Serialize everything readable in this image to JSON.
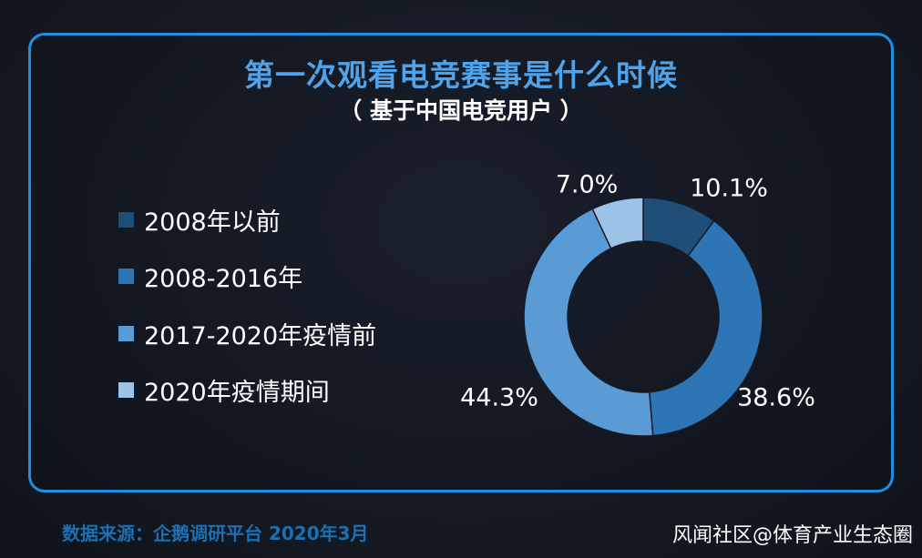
{
  "chart_data": {
    "type": "pie",
    "variant": "donut",
    "title": "第一次观看电竞赛事是什么时候",
    "subtitle": "（ 基于中国电竞用户 ）",
    "categories": [
      "2008年以前",
      "2008-2016年",
      "2017-2020年疫情前",
      "2020年疫情期间"
    ],
    "values": [
      10.1,
      38.6,
      44.3,
      7.0
    ],
    "labels": [
      "10.1%",
      "38.6%",
      "44.3%",
      "7.0%"
    ],
    "colors": [
      "#1f4e79",
      "#2e75b6",
      "#5b9bd5",
      "#9dc3e6"
    ],
    "legend_position": "left"
  },
  "footer": {
    "source": "数据来源：企鹅调研平台 2020年3月",
    "watermark": "风闻社区@体育产业生态圈"
  }
}
